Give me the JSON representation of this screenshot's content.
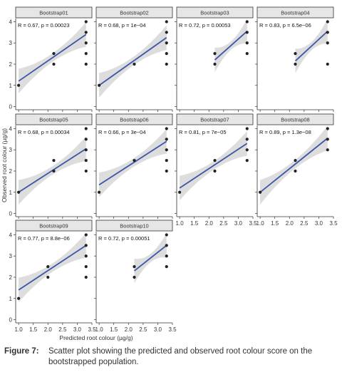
{
  "chart_data": {
    "type": "scatter",
    "title": "",
    "xlabel": "Predicted root colour (µg/g)",
    "ylabel": "Observed root colour (µg/g)",
    "xlim": [
      0.9,
      3.5
    ],
    "ylim": [
      -0.15,
      4.15
    ],
    "xticks": [
      "1.0",
      "1.5",
      "2.0",
      "2.5",
      "3.0",
      "3.5"
    ],
    "yticks": [
      "0",
      "1",
      "2",
      "3",
      "4"
    ],
    "panels": [
      {
        "name": "Bootstrap01",
        "annotation": "R = 0.67, p = 0.00023",
        "points": [
          [
            1.0,
            1
          ],
          [
            2.2,
            2.5
          ],
          [
            2.2,
            2
          ],
          [
            3.3,
            4
          ],
          [
            3.3,
            3.5
          ],
          [
            3.3,
            3
          ],
          [
            3.3,
            2.5
          ],
          [
            3.3,
            2
          ]
        ],
        "fit": {
          "x": [
            1.0,
            3.3
          ],
          "y": [
            1.2,
            3.4
          ]
        }
      },
      {
        "name": "Bootstrap02",
        "annotation": "R = 0.68, p = 1e−04",
        "points": [
          [
            1.0,
            1
          ],
          [
            2.2,
            2
          ],
          [
            3.3,
            4
          ],
          [
            3.3,
            3.5
          ],
          [
            3.3,
            3
          ],
          [
            3.3,
            2.5
          ],
          [
            3.3,
            2
          ]
        ],
        "fit": {
          "x": [
            1.0,
            3.3
          ],
          "y": [
            1.0,
            3.25
          ]
        }
      },
      {
        "name": "Bootstrap03",
        "annotation": "R = 0.72, p = 0.00053",
        "points": [
          [
            2.2,
            2.5
          ],
          [
            2.2,
            2
          ],
          [
            3.3,
            4
          ],
          [
            3.3,
            3.5
          ],
          [
            3.3,
            3
          ],
          [
            3.3,
            2.5
          ]
        ],
        "fit": {
          "x": [
            2.2,
            3.3
          ],
          "y": [
            2.2,
            3.55
          ]
        }
      },
      {
        "name": "Bootstrap04",
        "annotation": "R = 0.83, p = 6.5e−06",
        "points": [
          [
            2.2,
            2.5
          ],
          [
            2.2,
            2
          ],
          [
            3.3,
            4
          ],
          [
            3.3,
            3.5
          ],
          [
            3.3,
            3
          ],
          [
            3.3,
            2
          ]
        ],
        "fit": {
          "x": [
            2.2,
            3.3
          ],
          "y": [
            2.15,
            3.55
          ]
        }
      },
      {
        "name": "Bootstrap05",
        "annotation": "R = 0.68, p = 0.00034",
        "points": [
          [
            1.0,
            1
          ],
          [
            2.2,
            2.5
          ],
          [
            2.2,
            2
          ],
          [
            3.3,
            4
          ],
          [
            3.3,
            3.5
          ],
          [
            3.3,
            3
          ],
          [
            3.3,
            2.5
          ],
          [
            3.3,
            2
          ]
        ],
        "fit": {
          "x": [
            1.0,
            3.3
          ],
          "y": [
            1.0,
            3.05
          ]
        }
      },
      {
        "name": "Bootstrap06",
        "annotation": "R = 0.66, p = 3e−04",
        "points": [
          [
            1.0,
            1
          ],
          [
            2.2,
            2.5
          ],
          [
            3.3,
            4
          ],
          [
            3.3,
            3.5
          ],
          [
            3.3,
            3
          ],
          [
            3.3,
            2.5
          ],
          [
            3.3,
            2
          ]
        ],
        "fit": {
          "x": [
            1.0,
            3.3
          ],
          "y": [
            1.35,
            3.4
          ]
        }
      },
      {
        "name": "Bootstrap07",
        "annotation": "R = 0.81, p = 7e−05",
        "points": [
          [
            1.0,
            1
          ],
          [
            2.2,
            2.5
          ],
          [
            2.2,
            2
          ],
          [
            3.3,
            4
          ],
          [
            3.3,
            3.5
          ],
          [
            3.3,
            3
          ],
          [
            3.3,
            2.5
          ]
        ],
        "fit": {
          "x": [
            1.0,
            3.3
          ],
          "y": [
            1.2,
            3.3
          ]
        }
      },
      {
        "name": "Bootstrap08",
        "annotation": "R = 0.89, p = 1.3e−08",
        "points": [
          [
            1.0,
            1
          ],
          [
            2.2,
            2.5
          ],
          [
            2.2,
            2
          ],
          [
            3.3,
            4
          ],
          [
            3.3,
            3.5
          ],
          [
            3.3,
            3
          ]
        ],
        "fit": {
          "x": [
            1.0,
            3.3
          ],
          "y": [
            1.0,
            3.55
          ]
        }
      },
      {
        "name": "Bootstrap09",
        "annotation": "R = 0.77, p = 8.8e−06",
        "points": [
          [
            1.0,
            1
          ],
          [
            2.0,
            2.5
          ],
          [
            2.0,
            2
          ],
          [
            3.3,
            4
          ],
          [
            3.3,
            3.5
          ],
          [
            3.3,
            3
          ],
          [
            3.3,
            2.5
          ],
          [
            3.3,
            2
          ]
        ],
        "fit": {
          "x": [
            1.0,
            3.3
          ],
          "y": [
            1.4,
            3.5
          ]
        }
      },
      {
        "name": "Bootstrap10",
        "annotation": "R = 0.72, p = 0.00051",
        "points": [
          [
            2.2,
            2.5
          ],
          [
            2.2,
            2
          ],
          [
            3.3,
            4
          ],
          [
            3.3,
            3.5
          ],
          [
            3.3,
            3
          ],
          [
            3.3,
            2.5
          ]
        ],
        "fit": {
          "x": [
            2.2,
            3.3
          ],
          "y": [
            2.3,
            3.5
          ]
        }
      }
    ],
    "colors": {
      "fit_line": "#3a56a6",
      "ribbon": "#d7d7d7",
      "point": "#222222",
      "strip_bg": "#e6e6e6",
      "strip_border": "#333333"
    }
  },
  "caption": {
    "label": "Figure 7:",
    "text": "Scatter plot showing the predicted and observed root colour score on the bootstrapped population."
  }
}
